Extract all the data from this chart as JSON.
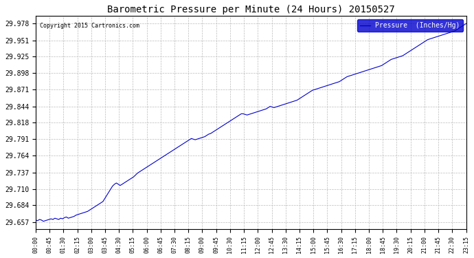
{
  "title": "Barometric Pressure per Minute (24 Hours) 20150527",
  "copyright": "Copyright 2015 Cartronics.com",
  "legend_label": "Pressure  (Inches/Hg)",
  "line_color": "#0000CC",
  "bg_color": "#ffffff",
  "grid_color": "#bbbbbb",
  "yticks": [
    29.657,
    29.684,
    29.71,
    29.737,
    29.764,
    29.791,
    29.818,
    29.844,
    29.871,
    29.898,
    29.925,
    29.951,
    29.978
  ],
  "ymin": 29.645,
  "ymax": 29.99,
  "xtick_labels": [
    "00:00",
    "00:45",
    "01:30",
    "02:15",
    "03:00",
    "03:45",
    "04:30",
    "05:15",
    "06:00",
    "06:45",
    "07:30",
    "08:15",
    "09:00",
    "09:45",
    "10:30",
    "11:15",
    "12:00",
    "12:45",
    "13:30",
    "14:15",
    "15:00",
    "15:45",
    "16:30",
    "17:15",
    "18:00",
    "18:45",
    "19:30",
    "20:15",
    "21:00",
    "21:45",
    "22:30",
    "23:15"
  ],
  "pressure_profile": [
    29.66,
    29.659,
    29.661,
    29.66,
    29.658,
    29.659,
    29.66,
    29.661,
    29.662,
    29.661,
    29.663,
    29.662,
    29.661,
    29.663,
    29.662,
    29.664,
    29.665,
    29.663,
    29.664,
    29.665,
    29.666,
    29.668,
    29.669,
    29.67,
    29.671,
    29.672,
    29.673,
    29.674,
    29.676,
    29.678,
    29.68,
    29.682,
    29.684,
    29.686,
    29.688,
    29.69,
    29.695,
    29.7,
    29.705,
    29.71,
    29.715,
    29.718,
    29.72,
    29.718,
    29.716,
    29.718,
    29.72,
    29.722,
    29.724,
    29.726,
    29.728,
    29.73,
    29.733,
    29.736,
    29.738,
    29.74,
    29.742,
    29.744,
    29.746,
    29.748,
    29.75,
    29.752,
    29.754,
    29.756,
    29.758,
    29.76,
    29.762,
    29.764,
    29.766,
    29.768,
    29.77,
    29.772,
    29.774,
    29.776,
    29.778,
    29.78,
    29.782,
    29.784,
    29.786,
    29.788,
    29.79,
    29.792,
    29.791,
    29.79,
    29.791,
    29.792,
    29.793,
    29.794,
    29.795,
    29.797,
    29.799,
    29.8,
    29.802,
    29.804,
    29.806,
    29.808,
    29.81,
    29.812,
    29.814,
    29.816,
    29.818,
    29.82,
    29.822,
    29.824,
    29.826,
    29.828,
    29.83,
    29.832,
    29.832,
    29.831,
    29.83,
    29.831,
    29.832,
    29.833,
    29.834,
    29.835,
    29.836,
    29.837,
    29.838,
    29.839,
    29.84,
    29.842,
    29.844,
    29.843,
    29.842,
    29.843,
    29.844,
    29.845,
    29.846,
    29.847,
    29.848,
    29.849,
    29.85,
    29.851,
    29.852,
    29.853,
    29.854,
    29.856,
    29.858,
    29.86,
    29.862,
    29.864,
    29.866,
    29.868,
    29.87,
    29.871,
    29.872,
    29.873,
    29.874,
    29.875,
    29.876,
    29.877,
    29.878,
    29.879,
    29.88,
    29.881,
    29.882,
    29.883,
    29.884,
    29.886,
    29.888,
    29.89,
    29.892,
    29.893,
    29.894,
    29.895,
    29.896,
    29.897,
    29.898,
    29.899,
    29.9,
    29.901,
    29.902,
    29.903,
    29.904,
    29.905,
    29.906,
    29.907,
    29.908,
    29.909,
    29.91,
    29.912,
    29.914,
    29.916,
    29.918,
    29.92,
    29.921,
    29.922,
    29.923,
    29.924,
    29.925,
    29.926,
    29.928,
    29.93,
    29.932,
    29.934,
    29.936,
    29.938,
    29.94,
    29.942,
    29.944,
    29.946,
    29.948,
    29.95,
    29.952,
    29.953,
    29.954,
    29.955,
    29.956,
    29.957,
    29.958,
    29.959,
    29.96,
    29.961,
    29.962,
    29.963,
    29.964,
    29.965,
    29.966,
    29.968,
    29.97,
    29.972,
    29.974,
    29.976,
    29.978
  ]
}
